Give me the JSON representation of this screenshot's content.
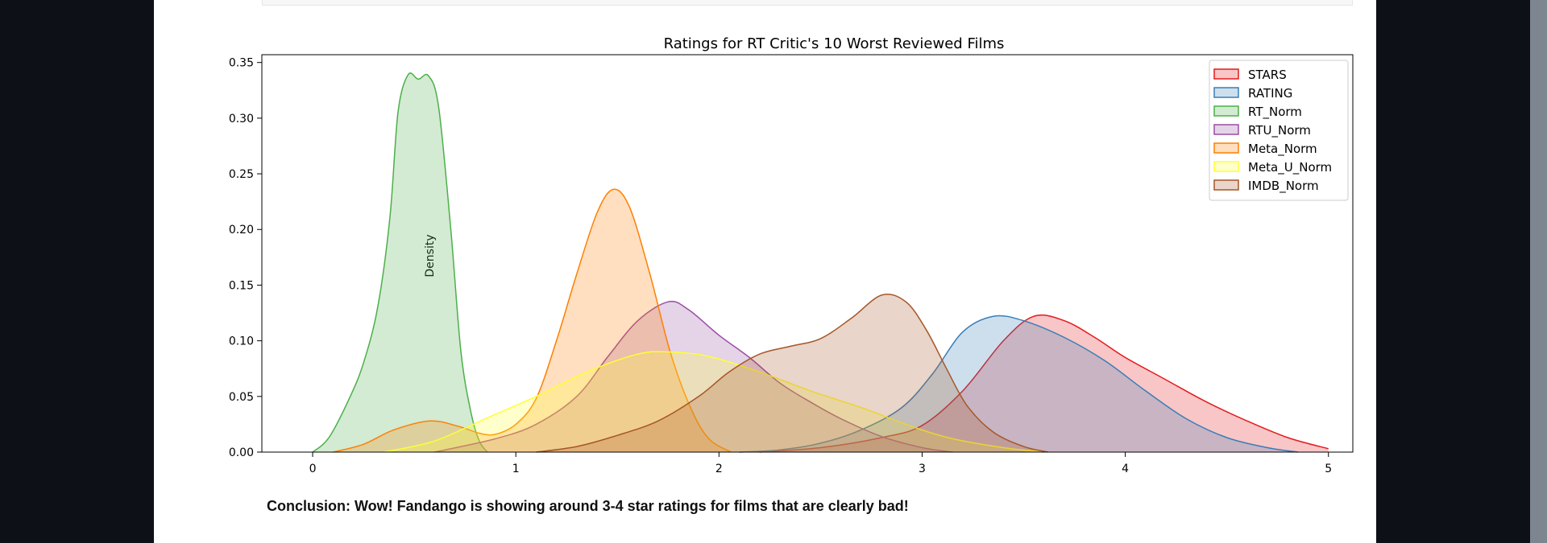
{
  "notebook": {
    "conclusion": "Conclusion: Wow! Fandango is showing around 3-4 star ratings for films that are clearly bad!"
  },
  "chart_data": {
    "type": "area",
    "chart_kind": "kde",
    "title": "Ratings for RT Critic's 10 Worst Reviewed Films",
    "xlabel": "",
    "ylabel": "Density",
    "xlim": [
      -0.25,
      5.12
    ],
    "ylim": [
      0,
      0.357
    ],
    "xticks": [
      0,
      1,
      2,
      3,
      4,
      5
    ],
    "yticks": [
      0.0,
      0.05,
      0.1,
      0.15,
      0.2,
      0.25,
      0.3,
      0.35
    ],
    "ytick_labels": [
      "0.00",
      "0.05",
      "0.10",
      "0.15",
      "0.20",
      "0.25",
      "0.30",
      "0.35"
    ],
    "grid": false,
    "legend_position": "top-right",
    "series": [
      {
        "name": "STARS",
        "color": "#e41a1c",
        "points": [
          [
            2.2,
            0.0
          ],
          [
            2.5,
            0.004
          ],
          [
            2.8,
            0.013
          ],
          [
            3.0,
            0.024
          ],
          [
            3.2,
            0.055
          ],
          [
            3.4,
            0.1
          ],
          [
            3.55,
            0.122
          ],
          [
            3.7,
            0.118
          ],
          [
            3.85,
            0.103
          ],
          [
            4.0,
            0.085
          ],
          [
            4.2,
            0.065
          ],
          [
            4.4,
            0.045
          ],
          [
            4.6,
            0.028
          ],
          [
            4.8,
            0.013
          ],
          [
            5.0,
            0.003
          ]
        ]
      },
      {
        "name": "RATING",
        "color": "#377eb8",
        "points": [
          [
            2.1,
            0.0
          ],
          [
            2.3,
            0.002
          ],
          [
            2.5,
            0.008
          ],
          [
            2.7,
            0.02
          ],
          [
            2.9,
            0.04
          ],
          [
            3.05,
            0.07
          ],
          [
            3.2,
            0.108
          ],
          [
            3.35,
            0.122
          ],
          [
            3.5,
            0.118
          ],
          [
            3.7,
            0.103
          ],
          [
            3.9,
            0.082
          ],
          [
            4.1,
            0.055
          ],
          [
            4.3,
            0.03
          ],
          [
            4.5,
            0.013
          ],
          [
            4.7,
            0.004
          ],
          [
            4.85,
            0.0
          ]
        ]
      },
      {
        "name": "RT_Norm",
        "color": "#4daf4a",
        "points": [
          [
            0.0,
            0.0
          ],
          [
            0.08,
            0.013
          ],
          [
            0.18,
            0.048
          ],
          [
            0.25,
            0.08
          ],
          [
            0.32,
            0.13
          ],
          [
            0.38,
            0.21
          ],
          [
            0.42,
            0.305
          ],
          [
            0.47,
            0.339
          ],
          [
            0.52,
            0.335
          ],
          [
            0.57,
            0.338
          ],
          [
            0.62,
            0.31
          ],
          [
            0.68,
            0.2
          ],
          [
            0.73,
            0.09
          ],
          [
            0.78,
            0.035
          ],
          [
            0.82,
            0.01
          ],
          [
            0.86,
            0.0
          ]
        ]
      },
      {
        "name": "RTU_Norm",
        "color": "#984ea3",
        "points": [
          [
            0.6,
            0.0
          ],
          [
            0.9,
            0.012
          ],
          [
            1.1,
            0.025
          ],
          [
            1.3,
            0.05
          ],
          [
            1.45,
            0.085
          ],
          [
            1.6,
            0.118
          ],
          [
            1.75,
            0.135
          ],
          [
            1.85,
            0.128
          ],
          [
            2.0,
            0.105
          ],
          [
            2.15,
            0.085
          ],
          [
            2.3,
            0.062
          ],
          [
            2.45,
            0.045
          ],
          [
            2.6,
            0.03
          ],
          [
            2.8,
            0.014
          ],
          [
            3.0,
            0.004
          ],
          [
            3.15,
            0.0
          ]
        ]
      },
      {
        "name": "Meta_Norm",
        "color": "#ff7f00",
        "points": [
          [
            0.1,
            0.0
          ],
          [
            0.25,
            0.007
          ],
          [
            0.4,
            0.02
          ],
          [
            0.58,
            0.028
          ],
          [
            0.72,
            0.023
          ],
          [
            0.82,
            0.017
          ],
          [
            0.9,
            0.016
          ],
          [
            1.0,
            0.025
          ],
          [
            1.1,
            0.048
          ],
          [
            1.2,
            0.1
          ],
          [
            1.3,
            0.16
          ],
          [
            1.4,
            0.215
          ],
          [
            1.48,
            0.236
          ],
          [
            1.56,
            0.22
          ],
          [
            1.66,
            0.16
          ],
          [
            1.76,
            0.09
          ],
          [
            1.86,
            0.04
          ],
          [
            1.95,
            0.012
          ],
          [
            2.06,
            0.0
          ]
        ]
      },
      {
        "name": "Meta_U_Norm",
        "color": "#ffff33",
        "points": [
          [
            0.35,
            0.0
          ],
          [
            0.6,
            0.01
          ],
          [
            0.85,
            0.03
          ],
          [
            1.1,
            0.05
          ],
          [
            1.35,
            0.072
          ],
          [
            1.6,
            0.088
          ],
          [
            1.75,
            0.09
          ],
          [
            1.95,
            0.086
          ],
          [
            2.2,
            0.072
          ],
          [
            2.45,
            0.055
          ],
          [
            2.7,
            0.04
          ],
          [
            2.95,
            0.023
          ],
          [
            3.15,
            0.012
          ],
          [
            3.4,
            0.004
          ],
          [
            3.6,
            0.0
          ]
        ]
      },
      {
        "name": "IMDB_Norm",
        "color": "#a65628",
        "points": [
          [
            1.1,
            0.0
          ],
          [
            1.3,
            0.005
          ],
          [
            1.5,
            0.015
          ],
          [
            1.7,
            0.028
          ],
          [
            1.9,
            0.05
          ],
          [
            2.05,
            0.072
          ],
          [
            2.2,
            0.088
          ],
          [
            2.35,
            0.095
          ],
          [
            2.5,
            0.102
          ],
          [
            2.65,
            0.12
          ],
          [
            2.8,
            0.141
          ],
          [
            2.92,
            0.135
          ],
          [
            3.02,
            0.11
          ],
          [
            3.12,
            0.075
          ],
          [
            3.22,
            0.042
          ],
          [
            3.35,
            0.018
          ],
          [
            3.5,
            0.005
          ],
          [
            3.62,
            0.0
          ]
        ]
      }
    ]
  }
}
